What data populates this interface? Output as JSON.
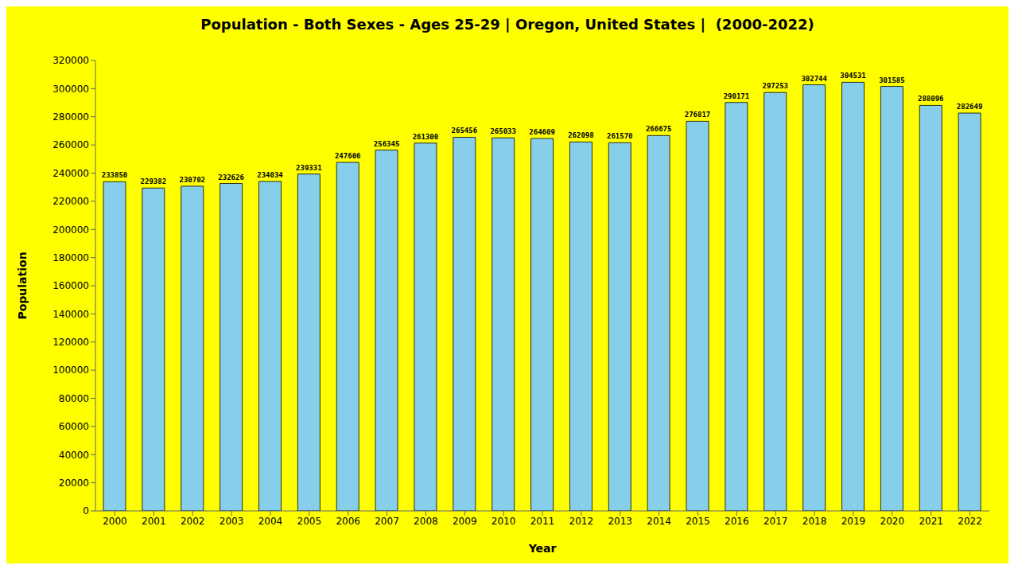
{
  "chart_data": {
    "type": "bar",
    "title": "Population - Both Sexes - Ages 25-29 | Oregon, United States |  (2000-2022)",
    "x_label": "Year",
    "y_label": "Population",
    "categories": [
      "2000",
      "2001",
      "2002",
      "2003",
      "2004",
      "2005",
      "2006",
      "2007",
      "2008",
      "2009",
      "2010",
      "2011",
      "2012",
      "2013",
      "2014",
      "2015",
      "2016",
      "2017",
      "2018",
      "2019",
      "2020",
      "2021",
      "2022"
    ],
    "values": [
      233850,
      229382,
      230702,
      232626,
      234034,
      239331,
      247606,
      256345,
      261300,
      265456,
      265033,
      264609,
      262098,
      261570,
      266675,
      276817,
      290171,
      297253,
      302744,
      304531,
      301585,
      288096,
      282649
    ],
    "color": "#87CEEB",
    "ylim": [
      0,
      320000
    ],
    "yticks": [
      0,
      20000,
      40000,
      60000,
      80000,
      100000,
      120000,
      140000,
      160000,
      180000,
      200000,
      220000,
      240000,
      260000,
      280000,
      300000,
      320000
    ],
    "grid": false,
    "legend": false,
    "data_labels": true
  }
}
